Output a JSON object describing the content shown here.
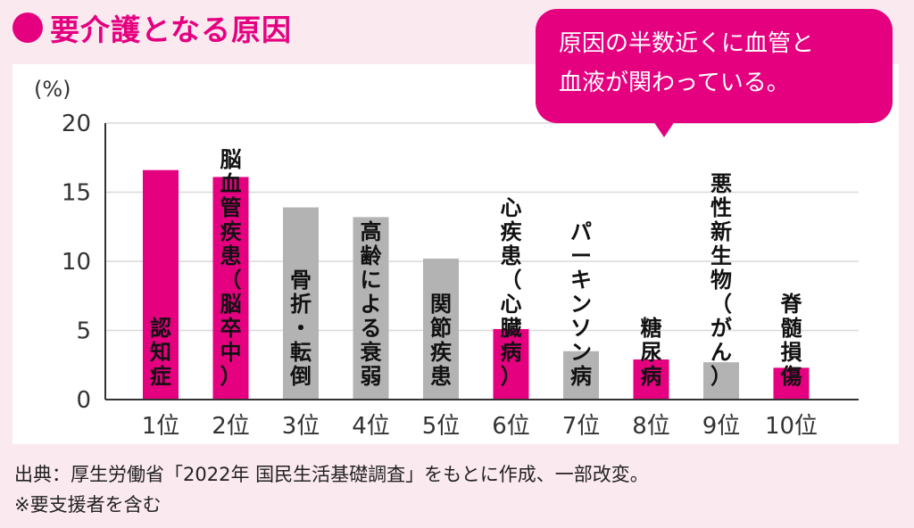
{
  "header": {
    "title": "要介護となる原因"
  },
  "callout": {
    "line1": "原因の半数近くに血管と",
    "line2": "血液が関わっている。"
  },
  "colors": {
    "accent": "#e4007f",
    "gray": "#b3b3b3",
    "axis": "#333333",
    "grid": "#d9d9d9"
  },
  "chart_data": {
    "type": "bar",
    "ylabel": "(%)",
    "ylim": [
      0,
      20
    ],
    "yticks": [
      0,
      5,
      10,
      15,
      20
    ],
    "grid": true,
    "categories": [
      "1位",
      "2位",
      "3位",
      "4位",
      "5位",
      "6位",
      "7位",
      "8位",
      "9位",
      "10位"
    ],
    "values": [
      16.6,
      16.1,
      13.9,
      13.2,
      10.2,
      5.1,
      3.5,
      2.9,
      2.7,
      2.3
    ],
    "highlight": [
      true,
      true,
      false,
      false,
      false,
      true,
      false,
      true,
      false,
      true
    ],
    "labels": [
      "認知症",
      "脳血管疾患（脳卒中）",
      "骨折・転倒",
      "高齢による衰弱",
      "関節疾患",
      "心疾患（心臓病）",
      "パーキンソン病",
      "糖尿病",
      "悪性新生物（がん）",
      "脊髄損傷"
    ]
  },
  "footer": {
    "source": "出典：厚生労働省「2022年 国民生活基礎調査」をもとに作成、一部改変。",
    "note": "※要支援者を含む"
  }
}
